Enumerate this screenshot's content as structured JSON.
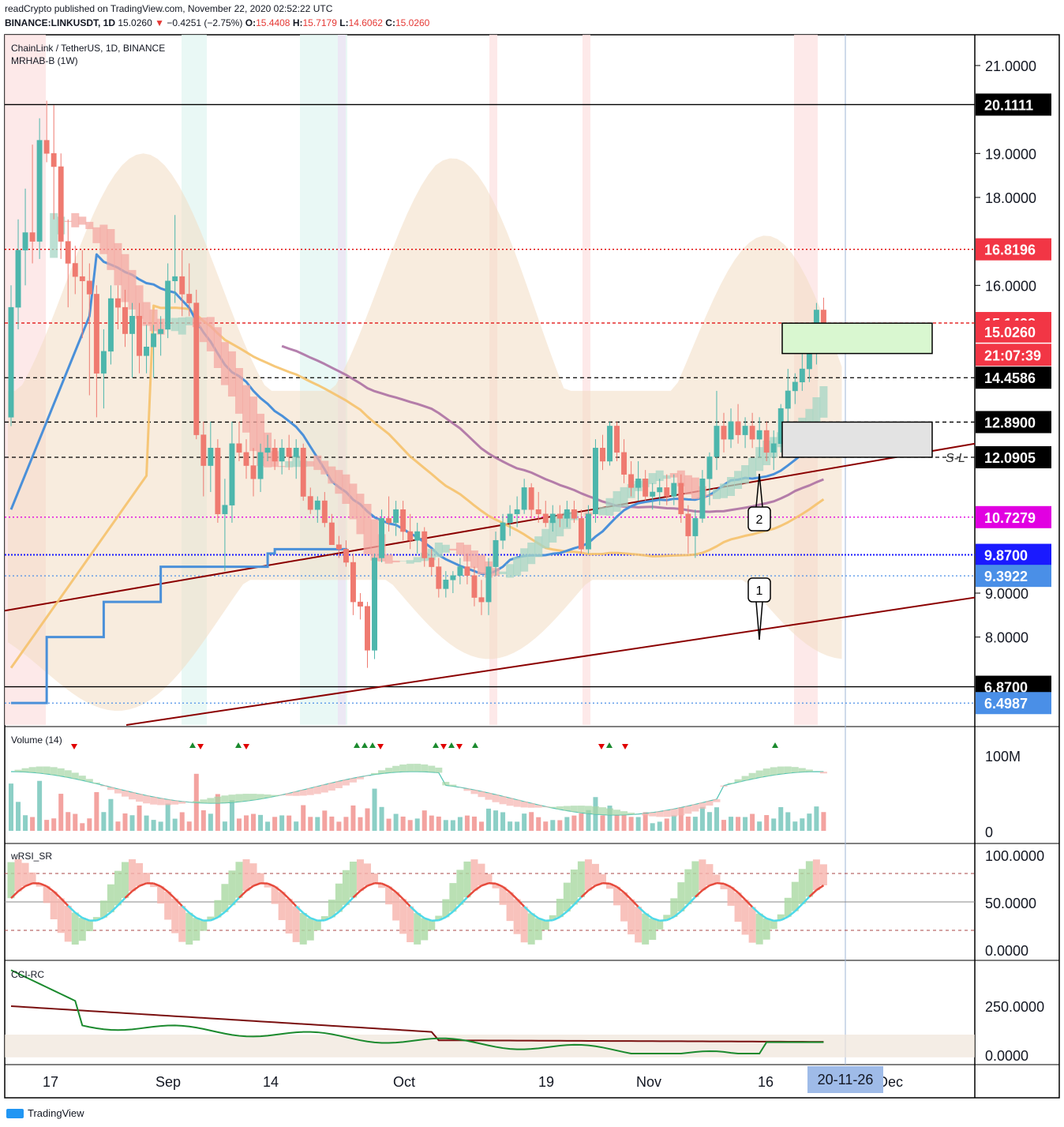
{
  "header": {
    "publisher_line": "readCrypto published on TradingView.com, November 22, 2020 02:52:22 UTC",
    "symbol_line": "BINANCE:LINKUSDT, 1D",
    "last": "15.0260",
    "change_arrow": "▼",
    "change": "−0.4251 (−2.75%)",
    "o_label": "O:",
    "o": "15.4408",
    "h_label": "H:",
    "h": "15.7179",
    "l_label": "L:",
    "l": "14.6062",
    "c_label": "C:",
    "c": "15.0260"
  },
  "panels": {
    "main_title": "ChainLink / TetherUS, 1D, BINANCE",
    "main_indicator": "MRHAB-B (1W)",
    "volume_title": "Volume (14)",
    "wrsi_title": "wRSI_SR",
    "cci_title": "CCI-RC"
  },
  "annotations": {
    "callout_1": "1",
    "callout_2": "2",
    "sl_label": "S-L"
  },
  "footer": {
    "brand": "TradingView"
  },
  "colors": {
    "up": "#26a69a",
    "down": "#ef5350",
    "bull_fill": "#a6d6c5",
    "bear_fill": "#f4a9a3",
    "cloud": "#f2dcc2",
    "blue_ma": "#4a90d9",
    "yellow_ma": "#f5c26b",
    "purple_ma": "#a86aa0",
    "trendline": "#8b0000",
    "magenta": "#e100e1",
    "navy": "#1a1aff"
  },
  "chart_data": {
    "type": "candlestick",
    "price_axis_ticks": [
      "21.0000",
      "19.0000",
      "18.0000",
      "16.0000",
      "9.0000",
      "8.0000"
    ],
    "price_range": [
      6.0,
      21.7
    ],
    "price_badges": [
      {
        "label": "20.1111",
        "value": 20.1111,
        "bg": "#000000",
        "fg": "#ffffff",
        "line": "solid"
      },
      {
        "label": "16.8196",
        "value": 16.8196,
        "bg": "#f23645",
        "fg": "#ffffff",
        "line": "dotted-red"
      },
      {
        "label": "15.1428",
        "value": 15.1428,
        "bg": "#f23645",
        "fg": "#ffffff",
        "line": "dashed-red"
      },
      {
        "label": "15.0260",
        "value": 14.95,
        "bg": "#f23645",
        "fg": "#ffffff",
        "line": "none"
      },
      {
        "label": "21:07:39",
        "value": 14.42,
        "bg": "#f23645",
        "fg": "#ffffff",
        "line": "none"
      },
      {
        "label": "14.4586",
        "value": 13.9,
        "bg": "#000000",
        "fg": "#ffffff",
        "line": "dashed-black"
      },
      {
        "label": "12.8900",
        "value": 12.89,
        "bg": "#000000",
        "fg": "#ffffff",
        "line": "dashed-black"
      },
      {
        "label": "12.0905",
        "value": 12.09,
        "bg": "#000000",
        "fg": "#ffffff",
        "line": "dashed-black"
      },
      {
        "label": "10.7279",
        "value": 10.7279,
        "bg": "#e100e1",
        "fg": "#ffffff",
        "line": "dotted-magenta"
      },
      {
        "label": "9.8700",
        "value": 9.87,
        "bg": "#1a1aff",
        "fg": "#ffffff",
        "line": "dotted-navy"
      },
      {
        "label": "9.3922",
        "value": 9.3922,
        "bg": "#4a8fe7",
        "fg": "#ffffff",
        "line": "dotted-blue"
      },
      {
        "label": "6.8700",
        "value": 6.87,
        "bg": "#000000",
        "fg": "#ffffff",
        "line": "solid"
      },
      {
        "label": "6.4987",
        "value": 6.4987,
        "bg": "#4a8fe7",
        "fg": "#ffffff",
        "line": "dotted-blue"
      }
    ],
    "ohlc": [
      [
        13.0,
        16.0,
        12.8,
        15.5
      ],
      [
        15.5,
        17.5,
        15.0,
        16.8
      ],
      [
        16.8,
        18.2,
        16.0,
        17.2
      ],
      [
        17.2,
        19.2,
        16.5,
        17.0
      ],
      [
        17.0,
        19.8,
        16.6,
        19.3
      ],
      [
        19.3,
        20.2,
        18.8,
        19.0
      ],
      [
        19.0,
        20.1,
        17.5,
        18.7
      ],
      [
        18.7,
        19.0,
        16.6,
        17.0
      ],
      [
        17.0,
        17.5,
        15.5,
        16.5
      ],
      [
        16.5,
        16.9,
        15.8,
        16.2
      ],
      [
        16.2,
        16.8,
        14.8,
        16.1
      ],
      [
        16.1,
        16.5,
        13.5,
        15.8
      ],
      [
        15.8,
        16.0,
        13.0,
        14.0
      ],
      [
        14.0,
        15.0,
        13.2,
        14.5
      ],
      [
        14.5,
        16.0,
        14.2,
        15.7
      ],
      [
        15.7,
        16.0,
        15.0,
        15.5
      ],
      [
        15.5,
        15.9,
        14.6,
        14.9
      ],
      [
        14.9,
        15.6,
        13.9,
        15.3
      ],
      [
        15.3,
        15.6,
        14.0,
        14.4
      ],
      [
        14.4,
        15.1,
        14.0,
        14.6
      ],
      [
        14.6,
        15.1,
        13.9,
        14.9
      ],
      [
        14.9,
        15.3,
        14.4,
        15.0
      ],
      [
        15.0,
        16.5,
        14.8,
        16.1
      ],
      [
        16.1,
        17.6,
        15.6,
        16.2
      ],
      [
        16.2,
        16.8,
        15.3,
        15.8
      ],
      [
        15.8,
        16.5,
        15.3,
        15.6
      ],
      [
        15.6,
        15.9,
        12.5,
        12.6
      ],
      [
        12.6,
        12.9,
        11.2,
        11.9
      ],
      [
        11.9,
        12.9,
        11.3,
        12.3
      ],
      [
        12.3,
        12.5,
        10.6,
        10.8
      ],
      [
        10.8,
        11.6,
        9.5,
        11.0
      ],
      [
        11.0,
        12.9,
        10.6,
        12.4
      ],
      [
        12.4,
        12.9,
        12.0,
        12.2
      ],
      [
        12.2,
        12.5,
        11.6,
        11.9
      ],
      [
        11.9,
        12.3,
        11.2,
        11.6
      ],
      [
        11.6,
        12.4,
        11.3,
        12.2
      ],
      [
        12.2,
        12.6,
        12.0,
        12.3
      ],
      [
        12.3,
        12.5,
        11.8,
        12.0
      ],
      [
        12.0,
        12.5,
        11.7,
        12.3
      ],
      [
        12.3,
        12.6,
        11.8,
        12.1
      ],
      [
        12.1,
        12.5,
        11.6,
        12.3
      ],
      [
        12.3,
        12.4,
        11.1,
        11.2
      ],
      [
        11.2,
        11.4,
        10.8,
        10.9
      ],
      [
        10.9,
        11.2,
        10.6,
        11.1
      ],
      [
        11.1,
        11.3,
        10.5,
        10.6
      ],
      [
        10.6,
        10.8,
        10.1,
        10.1
      ],
      [
        10.1,
        10.3,
        9.8,
        10.0
      ],
      [
        10.0,
        10.2,
        9.6,
        9.7
      ],
      [
        9.7,
        9.9,
        8.5,
        8.8
      ],
      [
        8.8,
        9.0,
        8.4,
        8.7
      ],
      [
        8.7,
        8.8,
        7.3,
        7.7
      ],
      [
        7.7,
        9.9,
        7.5,
        9.8
      ],
      [
        9.8,
        10.9,
        9.7,
        10.7
      ],
      [
        10.7,
        11.2,
        10.4,
        10.6
      ],
      [
        10.6,
        11.1,
        10.3,
        10.9
      ],
      [
        10.9,
        11.1,
        10.2,
        10.4
      ],
      [
        10.4,
        10.8,
        10.0,
        10.2
      ],
      [
        10.2,
        10.6,
        9.9,
        10.4
      ],
      [
        10.4,
        10.5,
        9.6,
        9.8
      ],
      [
        9.8,
        10.0,
        9.4,
        9.6
      ],
      [
        9.6,
        9.8,
        8.9,
        9.1
      ],
      [
        9.1,
        9.5,
        8.9,
        9.3
      ],
      [
        9.3,
        9.5,
        9.0,
        9.4
      ],
      [
        9.4,
        9.8,
        9.2,
        9.6
      ],
      [
        9.6,
        9.9,
        9.2,
        9.4
      ],
      [
        9.4,
        9.6,
        8.7,
        8.9
      ],
      [
        8.9,
        9.3,
        8.5,
        8.8
      ],
      [
        8.8,
        9.8,
        8.5,
        9.6
      ],
      [
        9.6,
        10.4,
        9.4,
        10.2
      ],
      [
        10.2,
        10.8,
        10.0,
        10.6
      ],
      [
        10.6,
        11.0,
        10.3,
        10.8
      ],
      [
        10.8,
        11.2,
        10.5,
        10.9
      ],
      [
        10.9,
        11.6,
        10.8,
        11.4
      ],
      [
        11.4,
        11.5,
        10.7,
        10.9
      ],
      [
        10.9,
        11.3,
        10.6,
        10.8
      ],
      [
        10.8,
        11.1,
        10.5,
        10.6
      ],
      [
        10.6,
        11.0,
        10.4,
        10.8
      ],
      [
        10.8,
        11.0,
        10.5,
        10.7
      ],
      [
        10.7,
        11.1,
        10.5,
        10.9
      ],
      [
        10.9,
        11.1,
        10.6,
        10.7
      ],
      [
        10.7,
        10.9,
        9.9,
        10.0
      ],
      [
        10.0,
        11.0,
        9.9,
        10.8
      ],
      [
        10.8,
        12.5,
        10.6,
        12.3
      ],
      [
        12.3,
        12.6,
        11.8,
        12.0
      ],
      [
        12.0,
        12.9,
        11.9,
        12.8
      ],
      [
        12.8,
        12.9,
        12.0,
        12.2
      ],
      [
        12.2,
        12.5,
        11.5,
        11.7
      ],
      [
        11.7,
        12.0,
        11.2,
        11.4
      ],
      [
        11.4,
        12.0,
        11.1,
        11.6
      ],
      [
        11.6,
        11.8,
        11.1,
        11.2
      ],
      [
        11.2,
        11.5,
        10.9,
        11.3
      ],
      [
        11.3,
        11.6,
        11.0,
        11.4
      ],
      [
        11.4,
        11.7,
        11.0,
        11.2
      ],
      [
        11.2,
        11.7,
        11.0,
        11.5
      ],
      [
        11.5,
        11.7,
        10.6,
        10.8
      ],
      [
        10.8,
        11.0,
        9.9,
        10.3
      ],
      [
        10.3,
        10.9,
        9.8,
        10.7
      ],
      [
        10.7,
        11.8,
        10.6,
        11.6
      ],
      [
        11.6,
        12.2,
        11.0,
        12.1
      ],
      [
        12.1,
        13.6,
        11.8,
        12.8
      ],
      [
        12.8,
        13.1,
        12.2,
        12.5
      ],
      [
        12.5,
        13.2,
        12.3,
        12.9
      ],
      [
        12.9,
        13.3,
        12.4,
        12.6
      ],
      [
        12.6,
        13.0,
        12.3,
        12.8
      ],
      [
        12.8,
        13.1,
        12.3,
        12.5
      ],
      [
        12.5,
        13.0,
        12.1,
        12.7
      ],
      [
        12.7,
        12.9,
        12.0,
        12.2
      ],
      [
        12.2,
        12.7,
        11.8,
        12.4
      ],
      [
        12.4,
        13.3,
        12.2,
        13.2
      ],
      [
        13.2,
        14.1,
        12.8,
        13.6
      ],
      [
        13.6,
        14.0,
        13.3,
        13.8
      ],
      [
        13.8,
        14.7,
        13.6,
        14.1
      ],
      [
        14.1,
        14.7,
        13.8,
        14.6
      ],
      [
        14.6,
        15.6,
        14.2,
        15.44
      ],
      [
        15.44,
        15.72,
        14.61,
        15.03
      ]
    ],
    "x_axis_labels": [
      "17",
      "Sep",
      "14",
      "Oct",
      "19",
      "Nov",
      "16",
      "Dec"
    ],
    "cursor_date": "20-11-26",
    "volume_axis": [
      "100M",
      "0"
    ],
    "wrsi_axis": [
      "100.0000",
      "50.0000",
      "0.0000"
    ],
    "cci_axis": [
      "250.0000",
      "0.0000"
    ]
  }
}
